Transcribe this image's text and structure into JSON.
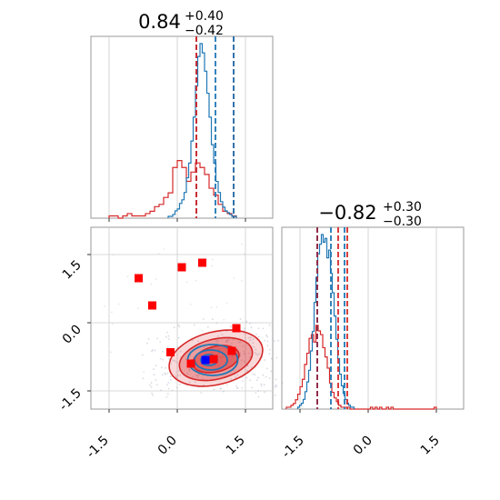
{
  "chart_data": {
    "type": "corner",
    "grid": true,
    "series": [
      {
        "name": "",
        "color": "#1f77b4"
      },
      {
        "name": "",
        "color": "#d62728"
      }
    ],
    "params": [
      {
        "title_median": "0.84",
        "title_plus": "+0.40",
        "title_minus": "−0.42",
        "range": [
          -1.9,
          2.1
        ],
        "hist_blue": {
          "start": -0.2,
          "width": 0.05,
          "counts": [
            1,
            1,
            2,
            4,
            5,
            8,
            10,
            14,
            22,
            30,
            42,
            55,
            72,
            88,
            95,
            90,
            80,
            68,
            55,
            40,
            30,
            20,
            14,
            9,
            6,
            4,
            3,
            2,
            1,
            1
          ]
        },
        "hist_red": {
          "start": -1.5,
          "width": 0.1,
          "counts": [
            1,
            1,
            0,
            1,
            2,
            1,
            1,
            1,
            2,
            3,
            5,
            6,
            9,
            11,
            22,
            25,
            22,
            16,
            20,
            24,
            22,
            19,
            13,
            10,
            6,
            3,
            2,
            1
          ]
        },
        "quantiles_blue": [
          0.42,
          0.84,
          1.24
        ],
        "quantiles_red": [
          0.42,
          1.24
        ],
        "xticks": [
          "-1.5",
          "0.0",
          "1.5"
        ]
      },
      {
        "title_median": "−0.82",
        "title_plus": "+0.30",
        "title_minus": "−0.30",
        "range": [
          -1.9,
          2.1
        ],
        "hist_blue": {
          "start": -1.55,
          "width": 0.04,
          "counts": [
            1,
            2,
            3,
            5,
            9,
            14,
            20,
            30,
            40,
            55,
            68,
            80,
            85,
            90,
            86,
            88,
            78,
            82,
            70,
            60,
            48,
            36,
            26,
            18,
            12,
            8,
            5,
            3,
            2,
            1,
            1
          ]
        },
        "hist_red": {
          "start": -1.8,
          "width": 0.05,
          "counts": [
            1,
            1,
            2,
            3,
            5,
            8,
            12,
            16,
            24,
            30,
            38,
            40,
            36,
            45,
            42,
            40,
            33,
            28,
            22,
            14,
            9,
            6,
            4,
            2,
            1,
            1,
            1,
            1,
            0,
            0,
            0,
            0,
            0,
            0,
            0,
            0,
            0,
            1,
            0,
            1,
            0,
            1,
            0,
            0,
            1,
            0,
            1,
            0,
            0,
            0,
            0,
            0,
            0,
            0,
            0,
            0,
            0,
            0,
            0,
            0,
            0,
            0,
            0,
            0,
            0,
            1
          ]
        },
        "quantiles_blue": [
          -1.12,
          -0.82,
          -0.52
        ],
        "quantiles_red": [
          -1.12,
          -0.82,
          -0.52
        ],
        "xticks": [
          "-1.5",
          "0.0",
          "1.5"
        ]
      }
    ],
    "joint": {
      "xrange": [
        -1.9,
        2.1
      ],
      "yrange": [
        -1.9,
        2.1
      ],
      "xticks": [
        "-1.5",
        "0.0",
        "1.5"
      ],
      "yticks": [
        "-1.5",
        "0.0",
        "1.5"
      ],
      "red_points": [
        [
          -0.85,
          0.98
        ],
        [
          -0.55,
          0.38
        ],
        [
          0.1,
          1.22
        ],
        [
          0.55,
          1.32
        ],
        [
          -0.15,
          -0.65
        ],
        [
          1.3,
          -0.12
        ],
        [
          1.2,
          -0.62
        ],
        [
          0.8,
          -0.8
        ],
        [
          0.3,
          -0.9
        ]
      ],
      "blue_point": [
        0.62,
        -0.82
      ],
      "red_contours": [
        {
          "cx": 0.85,
          "cy": -0.78,
          "rx": 1.05,
          "ry": 0.58,
          "rot": -14,
          "opacity": 0.3
        },
        {
          "cx": 0.85,
          "cy": -0.8,
          "rx": 0.82,
          "ry": 0.44,
          "rot": -14,
          "opacity": 0.55
        },
        {
          "cx": 0.85,
          "cy": -0.8,
          "rx": 0.52,
          "ry": 0.28,
          "rot": -14,
          "opacity": 0.8
        }
      ],
      "blue_contours": [
        {
          "cx": 0.78,
          "cy": -0.82,
          "rx": 0.55,
          "ry": 0.34,
          "rot": 0
        },
        {
          "cx": 0.74,
          "cy": -0.82,
          "rx": 0.36,
          "ry": 0.22,
          "rot": 0
        },
        {
          "cx": 0.7,
          "cy": -0.82,
          "rx": 0.18,
          "ry": 0.12,
          "rot": 0
        }
      ]
    }
  }
}
